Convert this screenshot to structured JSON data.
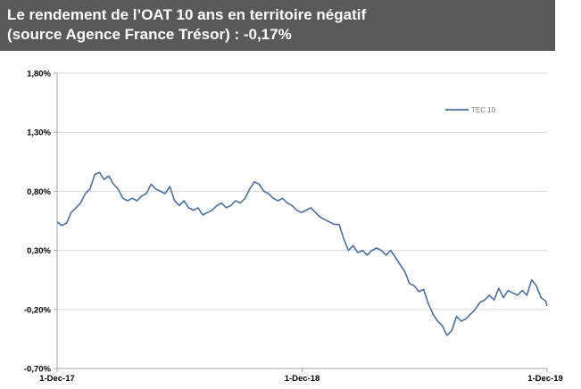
{
  "title": {
    "line1": "Le rendement de l’OAT 10 ans en territoire négatif",
    "line2": "(source Agence France Trésor) : -0,17%"
  },
  "colors": {
    "banner": "#595959",
    "series": "#4a6fa5",
    "grid": "#d9d9d9",
    "axis": "#a6a6a6"
  },
  "chart_data": {
    "type": "line",
    "title": "",
    "xlabel": "",
    "ylabel": "",
    "ylim": [
      -0.7,
      1.8
    ],
    "y_ticks": [
      -0.7,
      -0.2,
      0.3,
      0.8,
      1.3,
      1.8
    ],
    "y_tick_labels": [
      "-0,70%",
      "-0,20%",
      "0,30%",
      "0,80%",
      "1,30%",
      "1,80%"
    ],
    "x_tick_labels": [
      "1-Dec-17",
      "1-Dec-18",
      "1-Dec-19"
    ],
    "x_ticks": [
      "2017-12-01",
      "2018-12-01",
      "2019-12-01"
    ],
    "grid": true,
    "legend": "top-right",
    "series": [
      {
        "name": "TEC 10",
        "x": [
          "2017-12-01",
          "2017-12-08",
          "2017-12-15",
          "2017-12-22",
          "2017-12-29",
          "2018-01-05",
          "2018-01-12",
          "2018-01-19",
          "2018-01-26",
          "2018-02-02",
          "2018-02-09",
          "2018-02-16",
          "2018-02-23",
          "2018-03-02",
          "2018-03-09",
          "2018-03-16",
          "2018-03-23",
          "2018-03-30",
          "2018-04-06",
          "2018-04-13",
          "2018-04-20",
          "2018-04-27",
          "2018-05-04",
          "2018-05-11",
          "2018-05-18",
          "2018-05-25",
          "2018-06-01",
          "2018-06-08",
          "2018-06-15",
          "2018-06-22",
          "2018-06-29",
          "2018-07-06",
          "2018-07-13",
          "2018-07-20",
          "2018-07-27",
          "2018-08-03",
          "2018-08-10",
          "2018-08-17",
          "2018-08-24",
          "2018-08-31",
          "2018-09-07",
          "2018-09-14",
          "2018-09-21",
          "2018-09-28",
          "2018-10-05",
          "2018-10-12",
          "2018-10-19",
          "2018-10-26",
          "2018-11-02",
          "2018-11-09",
          "2018-11-16",
          "2018-11-23",
          "2018-11-30",
          "2018-12-07",
          "2018-12-14",
          "2018-12-21",
          "2018-12-28",
          "2019-01-04",
          "2019-01-11",
          "2019-01-18",
          "2019-01-25",
          "2019-02-01",
          "2019-02-08",
          "2019-02-15",
          "2019-02-22",
          "2019-03-01",
          "2019-03-08",
          "2019-03-15",
          "2019-03-22",
          "2019-03-29",
          "2019-04-05",
          "2019-04-12",
          "2019-04-19",
          "2019-04-26",
          "2019-05-03",
          "2019-05-10",
          "2019-05-17",
          "2019-05-24",
          "2019-05-31",
          "2019-06-07",
          "2019-06-14",
          "2019-06-21",
          "2019-06-28",
          "2019-07-05",
          "2019-07-12",
          "2019-07-19",
          "2019-07-26",
          "2019-08-02",
          "2019-08-09",
          "2019-08-16",
          "2019-08-23",
          "2019-08-30",
          "2019-09-06",
          "2019-09-13",
          "2019-09-20",
          "2019-09-27",
          "2019-10-04",
          "2019-10-11",
          "2019-10-18",
          "2019-10-25",
          "2019-11-01",
          "2019-11-08",
          "2019-11-15",
          "2019-11-22",
          "2019-11-29",
          "2019-12-01"
        ],
        "values": [
          0.54,
          0.51,
          0.53,
          0.62,
          0.66,
          0.7,
          0.78,
          0.82,
          0.94,
          0.96,
          0.9,
          0.93,
          0.86,
          0.82,
          0.74,
          0.72,
          0.74,
          0.72,
          0.76,
          0.78,
          0.86,
          0.82,
          0.8,
          0.78,
          0.84,
          0.72,
          0.68,
          0.72,
          0.66,
          0.64,
          0.66,
          0.6,
          0.62,
          0.64,
          0.68,
          0.7,
          0.66,
          0.68,
          0.72,
          0.7,
          0.74,
          0.82,
          0.88,
          0.86,
          0.8,
          0.78,
          0.74,
          0.72,
          0.74,
          0.7,
          0.68,
          0.64,
          0.62,
          0.64,
          0.66,
          0.62,
          0.58,
          0.56,
          0.54,
          0.52,
          0.52,
          0.4,
          0.3,
          0.34,
          0.28,
          0.3,
          0.26,
          0.3,
          0.32,
          0.3,
          0.26,
          0.3,
          0.24,
          0.18,
          0.12,
          0.02,
          0.0,
          -0.05,
          -0.03,
          -0.15,
          -0.24,
          -0.3,
          -0.34,
          -0.42,
          -0.38,
          -0.26,
          -0.3,
          -0.28,
          -0.24,
          -0.2,
          -0.14,
          -0.12,
          -0.08,
          -0.12,
          -0.02,
          -0.1,
          -0.04,
          -0.06,
          -0.08,
          -0.04,
          -0.08,
          0.05,
          0.0,
          -0.1,
          -0.13,
          -0.17
        ]
      }
    ]
  }
}
